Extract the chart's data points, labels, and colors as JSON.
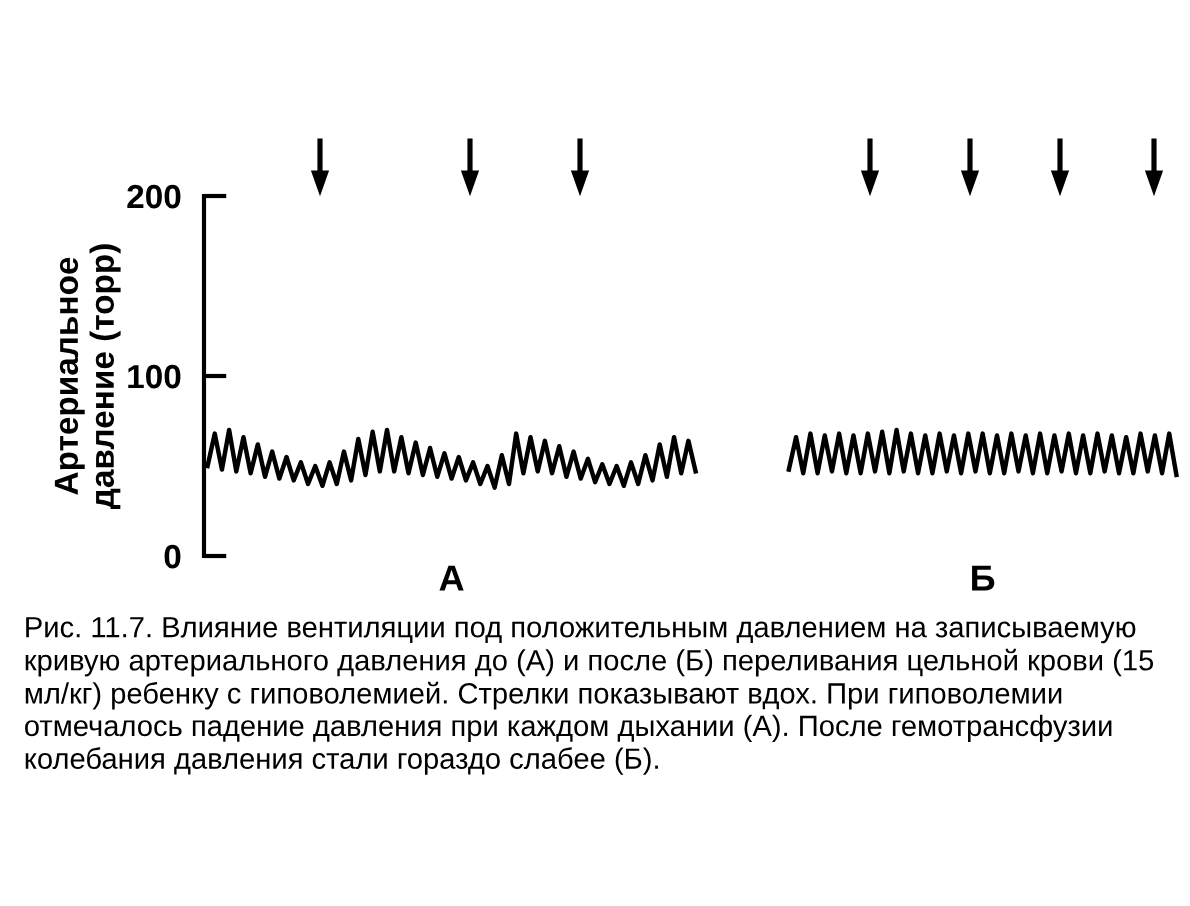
{
  "chart_data": {
    "type": "line",
    "ylabel": "Артериальное\nдавление (торр)",
    "categories": [
      null,
      null,
      null,
      null,
      null,
      null,
      null,
      null,
      null,
      null,
      null,
      null,
      null,
      null,
      null,
      null,
      null,
      null,
      null,
      null,
      null,
      null,
      null,
      null,
      null,
      null,
      null,
      null,
      null,
      null,
      null,
      null,
      null,
      null,
      null,
      null,
      null,
      null,
      null,
      null,
      null,
      null,
      null,
      null,
      null,
      null,
      null,
      null,
      null,
      null,
      null,
      null,
      null,
      null,
      null,
      null,
      null,
      null,
      null,
      null,
      null,
      null,
      null,
      null,
      null,
      null,
      null,
      null,
      null,
      null,
      null,
      null,
      null,
      null,
      null,
      null,
      null,
      null,
      null,
      null,
      null,
      null,
      null,
      null,
      null,
      null,
      null,
      null,
      null,
      null,
      null,
      null,
      null,
      null,
      null,
      null,
      null,
      null,
      null,
      null,
      null,
      null,
      null,
      null,
      null,
      null,
      null,
      null,
      null,
      null,
      null,
      null,
      null,
      null,
      null,
      null,
      null,
      null,
      null,
      null,
      null,
      null,
      null,
      null,
      null,
      null,
      null,
      null,
      null,
      null,
      null,
      null,
      null,
      null,
      null,
      null
    ],
    "ylim": [
      0,
      200
    ],
    "yticks": [
      0,
      100,
      200
    ],
    "tick_labels": "y",
    "grid": false,
    "series": [
      {
        "color": "#000000",
        "values": [
          50,
          68,
          48,
          70,
          47,
          66,
          46,
          62,
          44,
          58,
          43,
          55,
          42,
          52,
          40,
          50,
          39,
          52,
          40,
          58,
          42,
          65,
          45,
          69,
          47,
          70,
          47,
          66,
          46,
          63,
          45,
          60,
          44,
          57,
          43,
          55,
          42,
          52,
          40,
          50,
          38,
          56,
          40,
          68,
          46,
          66,
          47,
          64,
          46,
          61,
          44,
          58,
          43,
          54,
          41,
          51,
          40,
          50,
          39,
          52,
          40,
          56,
          42,
          62,
          44,
          66,
          46,
          64,
          47,
          null,
          null,
          null,
          null,
          null,
          null,
          null,
          null,
          null,
          null,
          null,
          null,
          null,
          null,
          null,
          null,
          null,
          null,
          null,
          null,
          null,
          null,
          null,
          null,
          null,
          null,
          null,
          null,
          null,
          null,
          null,
          null,
          null,
          null,
          null,
          null,
          null,
          null,
          null,
          null,
          null,
          null,
          null,
          null,
          null,
          null,
          null,
          null,
          null,
          null,
          null,
          null,
          null,
          null,
          null,
          null,
          null,
          null,
          null,
          null,
          null,
          null,
          null,
          null,
          null,
          null,
          null
        ]
      },
      {
        "color": "#000000",
        "values": [
          null,
          null,
          null,
          null,
          null,
          null,
          null,
          null,
          null,
          null,
          null,
          null,
          null,
          null,
          null,
          null,
          null,
          null,
          null,
          null,
          null,
          null,
          null,
          null,
          null,
          null,
          null,
          null,
          null,
          null,
          null,
          null,
          null,
          null,
          null,
          null,
          null,
          null,
          null,
          null,
          null,
          null,
          null,
          null,
          null,
          null,
          null,
          null,
          null,
          null,
          null,
          null,
          null,
          null,
          null,
          null,
          null,
          null,
          null,
          null,
          null,
          null,
          null,
          null,
          null,
          null,
          null,
          null,
          null,
          null,
          null,
          null,
          null,
          null,
          null,
          null,
          null,
          null,
          null,
          null,
          null,
          48,
          66,
          46,
          68,
          46,
          67,
          47,
          68,
          46,
          67,
          46,
          68,
          47,
          69,
          46,
          70,
          47,
          68,
          46,
          67,
          46,
          68,
          47,
          67,
          46,
          68,
          47,
          68,
          46,
          67,
          46,
          68,
          47,
          67,
          46,
          68,
          46,
          67,
          47,
          68,
          46,
          67,
          46,
          68,
          47,
          67,
          46,
          66,
          46,
          68,
          47,
          67,
          46,
          68,
          45
        ]
      }
    ],
    "annotations": [
      "А",
      "Б",
      "Рис. 11.7. Влияние вентиляции под положительным давлением на записываемую кривую артериального давления до (А) и после (Б) переливания цельной крови (15 мл/кг) ребенку с гиповолемией. Стрелки показывают вдох. При гиповолемии отмечалось падение давления при каждом дыхании (А). После гемотрансфузии колебания давления стали гораздо слабее (Б)."
    ]
  }
}
